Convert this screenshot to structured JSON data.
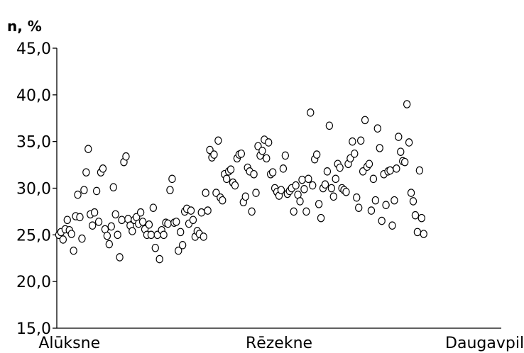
{
  "chart_data": {
    "type": "scatter",
    "title": "",
    "xlabel": "",
    "ylabel": "n, %",
    "ylim": [
      15,
      45
    ],
    "yticks": [
      "45,0",
      "40,0",
      "35,0",
      "30,0",
      "25,0",
      "20,0",
      "15,0"
    ],
    "ytick_values": [
      45,
      40,
      35,
      30,
      25,
      20,
      15
    ],
    "xlim": [
      0,
      212
    ],
    "category_labels": [
      {
        "label": "Alūksne",
        "x": 6
      },
      {
        "label": "Rēzekne",
        "x": 106
      },
      {
        "label": "Daugavpils",
        "x": 206
      }
    ],
    "grid": false,
    "legend": "none",
    "marker": "open-circle",
    "series": [
      {
        "points": [
          [
            1,
            25.0
          ],
          [
            2,
            25.3
          ],
          [
            3,
            24.5
          ],
          [
            4,
            25.6
          ],
          [
            5,
            26.6
          ],
          [
            6,
            25.5
          ],
          [
            7,
            25.1
          ],
          [
            8,
            23.3
          ],
          [
            9,
            27.0
          ],
          [
            10,
            29.3
          ],
          [
            11,
            26.9
          ],
          [
            12,
            24.6
          ],
          [
            13,
            29.8
          ],
          [
            14,
            31.7
          ],
          [
            15,
            34.2
          ],
          [
            16,
            27.2
          ],
          [
            17,
            26.0
          ],
          [
            18,
            27.4
          ],
          [
            19,
            29.7
          ],
          [
            20,
            26.4
          ],
          [
            21,
            31.7
          ],
          [
            22,
            32.1
          ],
          [
            23,
            25.6
          ],
          [
            24,
            24.9
          ],
          [
            25,
            24.0
          ],
          [
            26,
            25.9
          ],
          [
            27,
            30.1
          ],
          [
            28,
            27.2
          ],
          [
            29,
            25.0
          ],
          [
            30,
            22.6
          ],
          [
            31,
            26.6
          ],
          [
            32,
            32.8
          ],
          [
            33,
            33.4
          ],
          [
            34,
            26.7
          ],
          [
            35,
            26.0
          ],
          [
            36,
            25.4
          ],
          [
            37,
            26.6
          ],
          [
            38,
            26.9
          ],
          [
            39,
            26.2
          ],
          [
            40,
            27.4
          ],
          [
            41,
            26.4
          ],
          [
            42,
            25.6
          ],
          [
            43,
            25.0
          ],
          [
            44,
            26.1
          ],
          [
            45,
            25.0
          ],
          [
            46,
            27.9
          ],
          [
            47,
            23.6
          ],
          [
            48,
            25.0
          ],
          [
            49,
            22.4
          ],
          [
            50,
            25.5
          ],
          [
            51,
            25.0
          ],
          [
            52,
            26.3
          ],
          [
            53,
            26.2
          ],
          [
            54,
            29.8
          ],
          [
            55,
            31.0
          ],
          [
            56,
            26.3
          ],
          [
            57,
            26.4
          ],
          [
            58,
            23.3
          ],
          [
            59,
            25.3
          ],
          [
            60,
            23.9
          ],
          [
            61,
            27.5
          ],
          [
            62,
            27.8
          ],
          [
            63,
            26.2
          ],
          [
            64,
            27.6
          ],
          [
            65,
            26.6
          ],
          [
            66,
            24.8
          ],
          [
            67,
            25.4
          ],
          [
            68,
            25.1
          ],
          [
            69,
            27.4
          ],
          [
            70,
            24.8
          ],
          [
            71,
            29.5
          ],
          [
            72,
            27.6
          ],
          [
            73,
            34.1
          ],
          [
            74,
            33.3
          ],
          [
            75,
            33.6
          ],
          [
            76,
            29.5
          ],
          [
            77,
            35.1
          ],
          [
            78,
            29.0
          ],
          [
            79,
            28.7
          ],
          [
            80,
            31.5
          ],
          [
            81,
            31.0
          ],
          [
            82,
            31.8
          ],
          [
            83,
            32.0
          ],
          [
            84,
            30.6
          ],
          [
            85,
            30.3
          ],
          [
            86,
            33.2
          ],
          [
            87,
            33.6
          ],
          [
            88,
            33.7
          ],
          [
            89,
            28.5
          ],
          [
            90,
            29.1
          ],
          [
            91,
            32.2
          ],
          [
            92,
            31.8
          ],
          [
            93,
            27.5
          ],
          [
            94,
            31.5
          ],
          [
            95,
            29.5
          ],
          [
            96,
            34.5
          ],
          [
            97,
            33.5
          ],
          [
            98,
            34.0
          ],
          [
            99,
            35.2
          ],
          [
            100,
            33.2
          ],
          [
            101,
            34.9
          ],
          [
            102,
            31.5
          ],
          [
            103,
            31.7
          ],
          [
            104,
            30.0
          ],
          [
            105,
            29.6
          ],
          [
            106,
            29.2
          ],
          [
            107,
            29.8
          ],
          [
            108,
            32.1
          ],
          [
            109,
            33.5
          ],
          [
            110,
            29.4
          ],
          [
            111,
            29.7
          ],
          [
            112,
            30.0
          ],
          [
            113,
            27.5
          ],
          [
            114,
            30.3
          ],
          [
            115,
            29.3
          ],
          [
            116,
            28.6
          ],
          [
            117,
            30.9
          ],
          [
            118,
            29.9
          ],
          [
            119,
            27.5
          ],
          [
            120,
            31.0
          ],
          [
            121,
            38.1
          ],
          [
            122,
            30.3
          ],
          [
            123,
            33.1
          ],
          [
            124,
            33.6
          ],
          [
            125,
            28.3
          ],
          [
            126,
            26.8
          ],
          [
            127,
            30.0
          ],
          [
            128,
            30.4
          ],
          [
            129,
            31.8
          ],
          [
            130,
            36.7
          ],
          [
            131,
            30.0
          ],
          [
            132,
            29.1
          ],
          [
            133,
            31.0
          ],
          [
            134,
            32.6
          ],
          [
            135,
            32.2
          ],
          [
            136,
            30.0
          ],
          [
            137,
            29.8
          ],
          [
            138,
            29.6
          ],
          [
            139,
            32.6
          ],
          [
            140,
            33.2
          ],
          [
            141,
            35.0
          ],
          [
            142,
            33.7
          ],
          [
            143,
            29.0
          ],
          [
            144,
            27.9
          ],
          [
            145,
            35.1
          ],
          [
            146,
            31.8
          ],
          [
            147,
            37.3
          ],
          [
            148,
            32.3
          ],
          [
            149,
            32.6
          ],
          [
            150,
            27.6
          ],
          [
            151,
            31.0
          ],
          [
            152,
            28.7
          ],
          [
            153,
            36.4
          ],
          [
            154,
            34.3
          ],
          [
            155,
            26.5
          ],
          [
            156,
            31.5
          ],
          [
            157,
            28.2
          ],
          [
            158,
            31.8
          ],
          [
            159,
            31.9
          ],
          [
            160,
            26.0
          ],
          [
            161,
            28.7
          ],
          [
            162,
            32.1
          ],
          [
            163,
            35.5
          ],
          [
            164,
            33.9
          ],
          [
            165,
            32.9
          ],
          [
            166,
            32.8
          ],
          [
            167,
            39.0
          ],
          [
            168,
            34.9
          ],
          [
            169,
            29.5
          ],
          [
            170,
            28.6
          ],
          [
            171,
            27.1
          ],
          [
            172,
            25.3
          ],
          [
            173,
            31.9
          ],
          [
            174,
            26.8
          ],
          [
            175,
            25.1
          ]
        ]
      }
    ]
  }
}
